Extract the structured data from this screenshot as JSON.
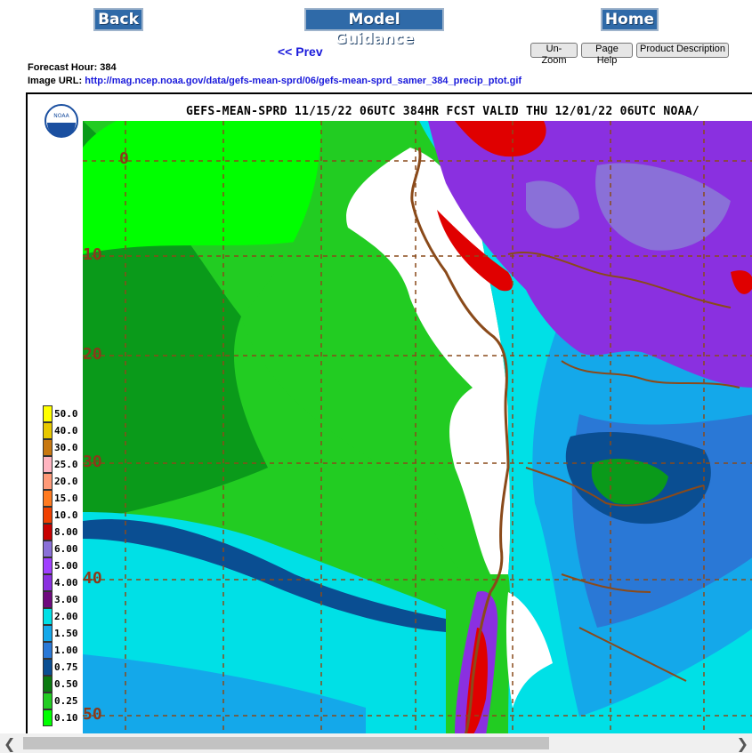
{
  "nav": {
    "back_label": "Back",
    "guidance_label": "Model Guidance",
    "home_label": "Home",
    "prev_label": "<< Prev"
  },
  "tools": {
    "unzoom_label": "Un-Zoom",
    "pagehelp_label": "Page Help",
    "proddesc_label": "Product Description"
  },
  "info": {
    "forecast_hour_text": "Forecast Hour: 384",
    "image_url_label": "Image URL: ",
    "image_url": "http://mag.ncep.noaa.gov/data/gefs-mean-sprd/06/gefs-mean-sprd_samer_384_precip_ptot.gif"
  },
  "map": {
    "header": "GEFS-MEAN-SPRD 11/15/22 06UTC 384HR FCST VALID THU 12/01/22 06UTC NOAA/",
    "logo_text": "NOAA",
    "lat_labels": [
      "0",
      "10",
      "20",
      "30",
      "40",
      "50"
    ],
    "colors": {
      "ocean_deep": "#0a9a1a",
      "ocean_green": "#22cc22",
      "bright_green": "#00ff00",
      "cyan": "#00e0e6",
      "light_blue": "#14a8ea",
      "mid_blue": "#2a78d6",
      "dark_blue": "#0a4e92",
      "purple": "#8a30e0",
      "lavender": "#8a70d8",
      "red": "#e00000",
      "grid": "#8a4a1a"
    }
  },
  "legend": {
    "items": [
      {
        "label": "50.0",
        "color": "#ffff00"
      },
      {
        "label": "40.0",
        "color": "#e8c800"
      },
      {
        "label": "30.0",
        "color": "#c87810"
      },
      {
        "label": "25.0",
        "color": "#ffb4c0"
      },
      {
        "label": "20.0",
        "color": "#ff9a78"
      },
      {
        "label": "15.0",
        "color": "#ff7a20"
      },
      {
        "label": "10.0",
        "color": "#f04000"
      },
      {
        "label": "8.00",
        "color": "#c80000"
      },
      {
        "label": "6.00",
        "color": "#8a70d8"
      },
      {
        "label": "5.00",
        "color": "#a040ff"
      },
      {
        "label": "4.00",
        "color": "#8a30e0"
      },
      {
        "label": "3.00",
        "color": "#6e0a7e"
      },
      {
        "label": "2.00",
        "color": "#00e0e6"
      },
      {
        "label": "1.50",
        "color": "#14a8ea"
      },
      {
        "label": "1.00",
        "color": "#2a78d6"
      },
      {
        "label": "0.75",
        "color": "#0a4e92"
      },
      {
        "label": "0.50",
        "color": "#0a7a10"
      },
      {
        "label": "0.25",
        "color": "#22cc22"
      },
      {
        "label": "0.10",
        "color": "#00ff00"
      }
    ]
  }
}
